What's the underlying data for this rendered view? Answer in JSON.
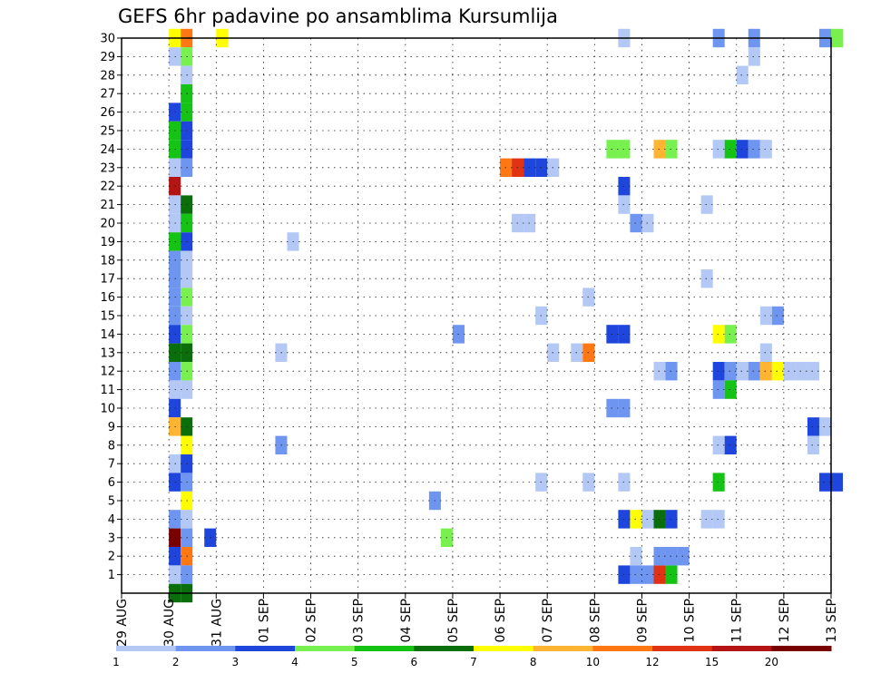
{
  "chart_data": {
    "type": "heatmap",
    "title": "GEFS 6hr padavine po ansamblima Kursumlija",
    "xlabel": "",
    "ylabel": "",
    "x_ticks": [
      "29 AUG",
      "30 AUG",
      "31 AUG",
      "01 SEP",
      "02 SEP",
      "03 SEP",
      "04 SEP",
      "05 SEP",
      "06 SEP",
      "07 SEP",
      "08 SEP",
      "09 SEP",
      "10 SEP",
      "11 SEP",
      "12 SEP",
      "13 SEP"
    ],
    "y_range": [
      0,
      30
    ],
    "y_ticks": [
      1,
      2,
      3,
      4,
      5,
      6,
      7,
      8,
      9,
      10,
      11,
      12,
      13,
      14,
      15,
      16,
      17,
      18,
      19,
      20,
      21,
      22,
      23,
      24,
      25,
      26,
      27,
      28,
      29,
      30
    ],
    "x_range_days": [
      0,
      15
    ],
    "time_step_hours": 6,
    "grid": true,
    "colorbar": {
      "labels": [
        "1",
        "2",
        "3",
        "4",
        "5",
        "6",
        "7",
        "8",
        "10",
        "12",
        "15",
        "20"
      ],
      "colors": [
        "#b4c8f5",
        "#6e96f0",
        "#1e46dc",
        "#78f050",
        "#14c314",
        "#0a6e0a",
        "#ffff00",
        "#ffb432",
        "#ff7814",
        "#e13214",
        "#b41414",
        "#780000"
      ]
    },
    "cells": [
      {
        "member": 30,
        "time": 4.5,
        "level": 7
      },
      {
        "member": 30,
        "time": 5.5,
        "level": 9
      },
      {
        "member": 30,
        "time": 8.5,
        "level": 7
      },
      {
        "member": 29,
        "time": 4.5,
        "level": 1
      },
      {
        "member": 29,
        "time": 5.5,
        "level": 4
      },
      {
        "member": 28,
        "time": 5.5,
        "level": 1
      },
      {
        "member": 27,
        "time": 5.5,
        "level": 5
      },
      {
        "member": 26,
        "time": 4.5,
        "level": 3
      },
      {
        "member": 26,
        "time": 5.5,
        "level": 5
      },
      {
        "member": 25,
        "time": 4.5,
        "level": 5
      },
      {
        "member": 25,
        "time": 5.5,
        "level": 3
      },
      {
        "member": 24,
        "time": 4.5,
        "level": 5
      },
      {
        "member": 24,
        "time": 5.5,
        "level": 3
      },
      {
        "member": 23,
        "time": 4.5,
        "level": 1
      },
      {
        "member": 23,
        "time": 5.5,
        "level": 2
      },
      {
        "member": 22,
        "time": 4.5,
        "level": 11
      },
      {
        "member": 21,
        "time": 4.5,
        "level": 1
      },
      {
        "member": 21,
        "time": 5.5,
        "level": 6
      },
      {
        "member": 20,
        "time": 4.5,
        "level": 1
      },
      {
        "member": 20,
        "time": 5.5,
        "level": 5
      },
      {
        "member": 19,
        "time": 4.5,
        "level": 5
      },
      {
        "member": 19,
        "time": 5.5,
        "level": 3
      },
      {
        "member": 18,
        "time": 4.5,
        "level": 2
      },
      {
        "member": 18,
        "time": 5.5,
        "level": 1
      },
      {
        "member": 17,
        "time": 4.5,
        "level": 2
      },
      {
        "member": 17,
        "time": 5.5,
        "level": 1
      },
      {
        "member": 16,
        "time": 4.5,
        "level": 2
      },
      {
        "member": 16,
        "time": 5.5,
        "level": 4
      },
      {
        "member": 15,
        "time": 4.5,
        "level": 2
      },
      {
        "member": 15,
        "time": 5.5,
        "level": 1
      },
      {
        "member": 14,
        "time": 4.5,
        "level": 3
      },
      {
        "member": 14,
        "time": 5.5,
        "level": 4
      },
      {
        "member": 13,
        "time": 4.5,
        "level": 6
      },
      {
        "member": 13,
        "time": 5.5,
        "level": 6
      },
      {
        "member": 12,
        "time": 4.5,
        "level": 2
      },
      {
        "member": 12,
        "time": 5.5,
        "level": 4
      },
      {
        "member": 11,
        "time": 4.5,
        "level": 1
      },
      {
        "member": 11,
        "time": 5.5,
        "level": 1
      },
      {
        "member": 10,
        "time": 4.5,
        "level": 3
      },
      {
        "member": 9,
        "time": 4.5,
        "level": 8
      },
      {
        "member": 9,
        "time": 5.5,
        "level": 6
      },
      {
        "member": 8,
        "time": 5.5,
        "level": 7
      },
      {
        "member": 7,
        "time": 4.5,
        "level": 1
      },
      {
        "member": 7,
        "time": 5.5,
        "level": 3
      },
      {
        "member": 6,
        "time": 4.5,
        "level": 3
      },
      {
        "member": 6,
        "time": 5.5,
        "level": 2
      },
      {
        "member": 5,
        "time": 5.5,
        "level": 7
      },
      {
        "member": 4,
        "time": 4.5,
        "level": 2
      },
      {
        "member": 4,
        "time": 5.5,
        "level": 1
      },
      {
        "member": 3,
        "time": 4.5,
        "level": 12
      },
      {
        "member": 3,
        "time": 5.5,
        "level": 2
      },
      {
        "member": 2,
        "time": 4.5,
        "level": 3
      },
      {
        "member": 2,
        "time": 5.5,
        "level": 9
      },
      {
        "member": 1,
        "time": 4.5,
        "level": 1
      },
      {
        "member": 1,
        "time": 5.5,
        "level": 2
      },
      {
        "member": 0,
        "time": 4.5,
        "level": 6
      },
      {
        "member": 0,
        "time": 5.5,
        "level": 6
      },
      {
        "member": 3,
        "time": 7.5,
        "level": 3
      },
      {
        "member": 19,
        "time": 14.5,
        "level": 1
      },
      {
        "member": 13,
        "time": 13.5,
        "level": 1
      },
      {
        "member": 8,
        "time": 13.5,
        "level": 2
      },
      {
        "member": 5,
        "time": 26.5,
        "level": 2
      },
      {
        "member": 3,
        "time": 27.5,
        "level": 4
      },
      {
        "member": 14,
        "time": 28.5,
        "level": 2
      },
      {
        "member": 23,
        "time": 32.5,
        "level": 9
      },
      {
        "member": 23,
        "time": 33.5,
        "level": 10
      },
      {
        "member": 23,
        "time": 34.5,
        "level": 3
      },
      {
        "member": 23,
        "time": 35.5,
        "level": 3
      },
      {
        "member": 23,
        "time": 36.5,
        "level": 1
      },
      {
        "member": 20,
        "time": 33.5,
        "level": 1
      },
      {
        "member": 20,
        "time": 34.5,
        "level": 1
      },
      {
        "member": 15,
        "time": 35.5,
        "level": 1
      },
      {
        "member": 6,
        "time": 35.5,
        "level": 1
      },
      {
        "member": 13,
        "time": 36.5,
        "level": 1
      },
      {
        "member": 13,
        "time": 38.5,
        "level": 1
      },
      {
        "member": 13,
        "time": 39.5,
        "level": 9
      },
      {
        "member": 16,
        "time": 39.5,
        "level": 1
      },
      {
        "member": 6,
        "time": 39.5,
        "level": 1
      },
      {
        "member": 24,
        "time": 41.5,
        "level": 4
      },
      {
        "member": 24,
        "time": 42.5,
        "level": 4
      },
      {
        "member": 14,
        "time": 41.5,
        "level": 3
      },
      {
        "member": 14,
        "time": 42.5,
        "level": 3
      },
      {
        "member": 10,
        "time": 41.5,
        "level": 2
      },
      {
        "member": 10,
        "time": 42.5,
        "level": 2
      },
      {
        "member": 30,
        "time": 42.5,
        "level": 1
      },
      {
        "member": 22,
        "time": 42.5,
        "level": 3
      },
      {
        "member": 21,
        "time": 42.5,
        "level": 1
      },
      {
        "member": 6,
        "time": 42.5,
        "level": 1
      },
      {
        "member": 4,
        "time": 42.5,
        "level": 3
      },
      {
        "member": 4,
        "time": 43.5,
        "level": 7
      },
      {
        "member": 4,
        "time": 44.5,
        "level": 1
      },
      {
        "member": 4,
        "time": 45.5,
        "level": 6
      },
      {
        "member": 4,
        "time": 46.5,
        "level": 3
      },
      {
        "member": 1,
        "time": 42.5,
        "level": 3
      },
      {
        "member": 1,
        "time": 43.5,
        "level": 2
      },
      {
        "member": 1,
        "time": 44.5,
        "level": 2
      },
      {
        "member": 1,
        "time": 45.5,
        "level": 10
      },
      {
        "member": 1,
        "time": 46.5,
        "level": 5
      },
      {
        "member": 20,
        "time": 43.5,
        "level": 2
      },
      {
        "member": 20,
        "time": 44.5,
        "level": 1
      },
      {
        "member": 2,
        "time": 43.5,
        "level": 1
      },
      {
        "member": 24,
        "time": 45.5,
        "level": 8
      },
      {
        "member": 24,
        "time": 46.5,
        "level": 4
      },
      {
        "member": 12,
        "time": 45.5,
        "level": 1
      },
      {
        "member": 12,
        "time": 46.5,
        "level": 2
      },
      {
        "member": 2,
        "time": 45.5,
        "level": 2
      },
      {
        "member": 2,
        "time": 46.5,
        "level": 2
      },
      {
        "member": 2,
        "time": 47.5,
        "level": 2
      },
      {
        "member": 30,
        "time": 50.5,
        "level": 2
      },
      {
        "member": 30,
        "time": 53.5,
        "level": 2
      },
      {
        "member": 30,
        "time": 59.5,
        "level": 2
      },
      {
        "member": 30,
        "time": 60.5,
        "level": 4
      },
      {
        "member": 29,
        "time": 53.5,
        "level": 1
      },
      {
        "member": 28,
        "time": 52.5,
        "level": 1
      },
      {
        "member": 24,
        "time": 50.5,
        "level": 1
      },
      {
        "member": 24,
        "time": 51.5,
        "level": 5
      },
      {
        "member": 24,
        "time": 52.5,
        "level": 3
      },
      {
        "member": 24,
        "time": 53.5,
        "level": 2
      },
      {
        "member": 24,
        "time": 54.5,
        "level": 1
      },
      {
        "member": 21,
        "time": 49.5,
        "level": 1
      },
      {
        "member": 17,
        "time": 49.5,
        "level": 1
      },
      {
        "member": 15,
        "time": 54.5,
        "level": 1
      },
      {
        "member": 15,
        "time": 55.5,
        "level": 2
      },
      {
        "member": 14,
        "time": 50.5,
        "level": 7
      },
      {
        "member": 14,
        "time": 51.5,
        "level": 4
      },
      {
        "member": 13,
        "time": 54.5,
        "level": 1
      },
      {
        "member": 12,
        "time": 50.5,
        "level": 3
      },
      {
        "member": 12,
        "time": 51.5,
        "level": 2
      },
      {
        "member": 12,
        "time": 52.5,
        "level": 1
      },
      {
        "member": 12,
        "time": 53.5,
        "level": 2
      },
      {
        "member": 12,
        "time": 54.5,
        "level": 8
      },
      {
        "member": 12,
        "time": 55.5,
        "level": 7
      },
      {
        "member": 12,
        "time": 56.5,
        "level": 1
      },
      {
        "member": 12,
        "time": 57.5,
        "level": 1
      },
      {
        "member": 12,
        "time": 58.5,
        "level": 1
      },
      {
        "member": 11,
        "time": 50.5,
        "level": 2
      },
      {
        "member": 11,
        "time": 51.5,
        "level": 5
      },
      {
        "member": 9,
        "time": 58.5,
        "level": 3
      },
      {
        "member": 9,
        "time": 59.5,
        "level": 1
      },
      {
        "member": 8,
        "time": 50.5,
        "level": 1
      },
      {
        "member": 8,
        "time": 51.5,
        "level": 3
      },
      {
        "member": 8,
        "time": 58.5,
        "level": 1
      },
      {
        "member": 6,
        "time": 50.5,
        "level": 5
      },
      {
        "member": 6,
        "time": 59.5,
        "level": 3
      },
      {
        "member": 6,
        "time": 60.5,
        "level": 3
      },
      {
        "member": 4,
        "time": 49.5,
        "level": 1
      },
      {
        "member": 4,
        "time": 50.5,
        "level": 1
      }
    ]
  }
}
